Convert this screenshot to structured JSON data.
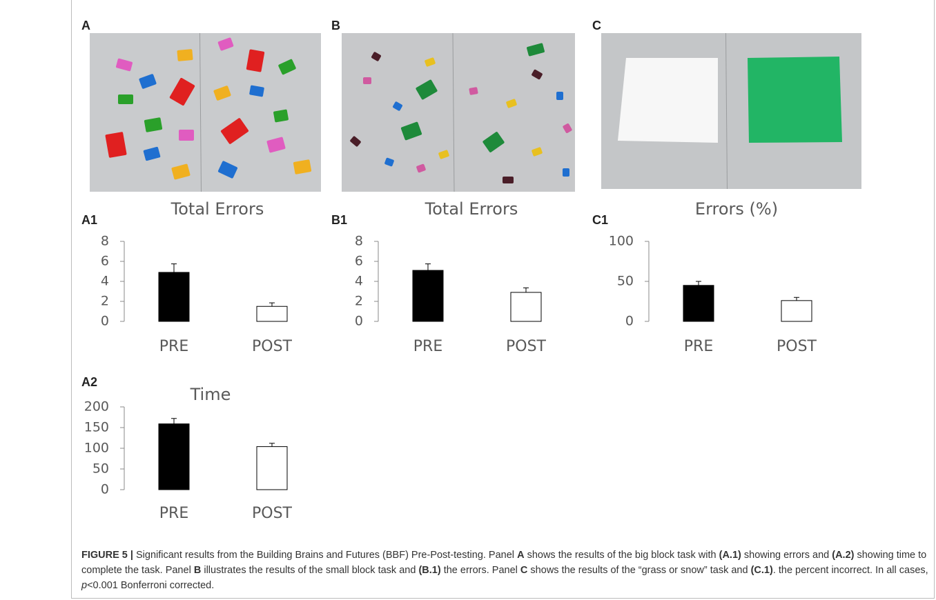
{
  "photo_labels": [
    "A",
    "B",
    "C"
  ],
  "chart_data": [
    {
      "type": "bar",
      "panel_label": "A1",
      "title": "Total Errors",
      "categories": [
        "PRE",
        "POST"
      ],
      "values": [
        4.9,
        1.5
      ],
      "errors": [
        0.85,
        0.35
      ],
      "colors": [
        "#000000",
        "#ffffff"
      ],
      "ylim": [
        0,
        8
      ],
      "yticks": [
        0,
        2,
        4,
        6,
        8
      ]
    },
    {
      "type": "bar",
      "panel_label": "B1",
      "title": "Total Errors",
      "categories": [
        "PRE",
        "POST"
      ],
      "values": [
        5.1,
        2.9
      ],
      "errors": [
        0.65,
        0.45
      ],
      "colors": [
        "#000000",
        "#ffffff"
      ],
      "ylim": [
        0,
        8
      ],
      "yticks": [
        0,
        2,
        4,
        6,
        8
      ]
    },
    {
      "type": "bar",
      "panel_label": "C1",
      "title": "Errors (%)",
      "categories": [
        "PRE",
        "POST"
      ],
      "values": [
        45,
        26
      ],
      "errors": [
        5,
        4
      ],
      "colors": [
        "#000000",
        "#ffffff"
      ],
      "ylim": [
        0,
        100
      ],
      "yticks": [
        0,
        50,
        100
      ]
    },
    {
      "type": "bar",
      "panel_label": "A2",
      "title": "Time",
      "categories": [
        "PRE",
        "POST"
      ],
      "values": [
        159,
        104
      ],
      "errors": [
        13,
        8
      ],
      "colors": [
        "#000000",
        "#ffffff"
      ],
      "ylim": [
        0,
        200
      ],
      "yticks": [
        0,
        50,
        100,
        150,
        200
      ]
    }
  ],
  "caption": [
    {
      "text": "FIGURE 5 | ",
      "bold": true
    },
    {
      "text": "Significant results from the Building Brains and Futures (BBF) Pre-Post-testing. Panel "
    },
    {
      "text": "A",
      "bold": true
    },
    {
      "text": " shows the results of the big block task with "
    },
    {
      "text": "(A.1)",
      "bold": true
    },
    {
      "text": " showing errors and "
    },
    {
      "text": "(A.2)",
      "bold": true
    },
    {
      "text": " showing time to complete the task. Panel "
    },
    {
      "text": "B",
      "bold": true
    },
    {
      "text": " illustrates the results of the small block task and "
    },
    {
      "text": "(B.1)",
      "bold": true
    },
    {
      "text": " the errors. Panel "
    },
    {
      "text": "C",
      "bold": true
    },
    {
      "text": " shows the results of the “grass or snow” task and "
    },
    {
      "text": "(C.1)",
      "bold": true
    },
    {
      "text": ". the percent incorrect. In all cases, "
    },
    {
      "text": "p",
      "italic": true
    },
    {
      "text": "<0.001 Bonferroni corrected."
    }
  ]
}
